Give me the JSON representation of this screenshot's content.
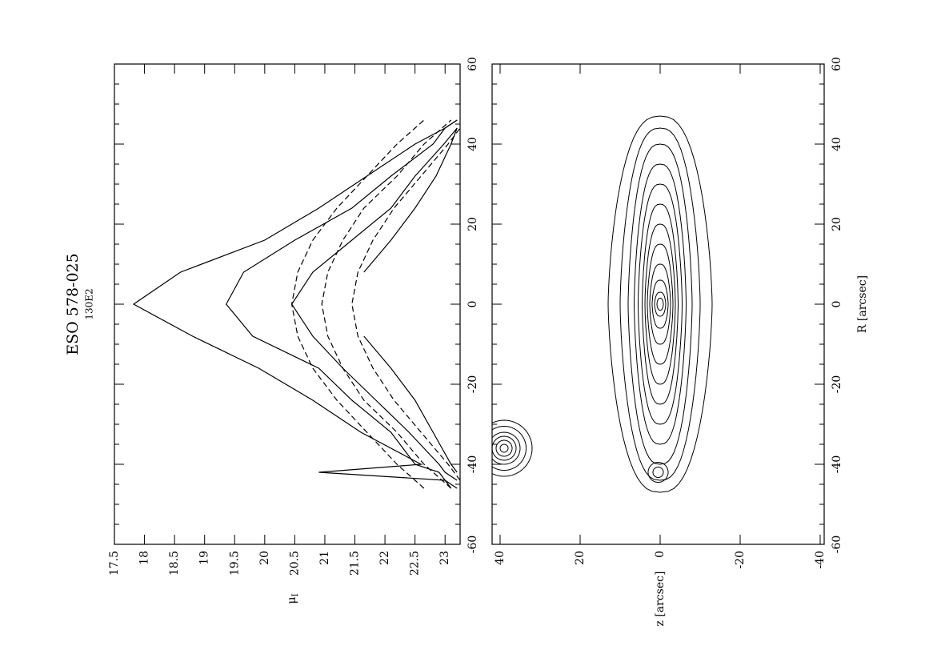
{
  "chart_data": [
    {
      "type": "line",
      "title": "ESO 578-025",
      "subtitle": "130E2",
      "ylabel": "μ",
      "ylabel_sub": "I",
      "x": [
        -46,
        -44,
        -42,
        -40,
        -32,
        -24,
        -16,
        -8,
        0,
        8,
        16,
        24,
        32,
        40,
        44,
        46
      ],
      "xlim": [
        -60,
        60
      ],
      "xticks": [
        -60,
        -40,
        -20,
        0,
        20,
        40,
        60
      ],
      "ylim": [
        17.5,
        23.25
      ],
      "yticks": [
        17.5,
        18,
        18.5,
        19,
        19.5,
        20,
        20.5,
        21,
        21.5,
        22,
        22.5,
        23
      ],
      "series": [
        {
          "color": "#000",
          "style": "solid",
          "values": [
            23.1,
            23.0,
            20.9,
            22.6,
            21.6,
            20.8,
            19.9,
            18.8,
            17.82,
            18.6,
            20.0,
            20.9,
            21.7,
            22.5,
            23.0,
            23.2
          ]
        },
        {
          "color": "#000",
          "style": "solid",
          "values": [
            23.2,
            23.0,
            22.9,
            22.5,
            22.1,
            21.45,
            20.9,
            19.8,
            19.36,
            19.65,
            20.5,
            21.45,
            22.1,
            22.8,
            23.0,
            23.2
          ]
        },
        {
          "color": "#000",
          "style": "solid",
          "values": [
            null,
            23.2,
            23.0,
            22.9,
            22.4,
            21.85,
            21.3,
            20.8,
            20.45,
            20.8,
            21.45,
            22.1,
            22.5,
            22.98,
            23.2,
            null
          ]
        },
        {
          "color": "#000",
          "style": "solid",
          "values": [
            null,
            null,
            23.2,
            23.1,
            22.8,
            22.5,
            22.1,
            21.65,
            null,
            21.65,
            22.1,
            22.5,
            22.85,
            23.1,
            23.2,
            null
          ]
        },
        {
          "color": "#000",
          "style": "dashed",
          "values": [
            22.65,
            22.5,
            22.35,
            22.2,
            21.7,
            21.2,
            20.8,
            20.55,
            20.45,
            20.55,
            20.8,
            21.2,
            21.7,
            22.2,
            22.5,
            22.65
          ]
        },
        {
          "color": "#000",
          "style": "dashed",
          "values": [
            23.1,
            22.95,
            22.8,
            22.65,
            22.2,
            21.65,
            21.3,
            21.05,
            20.95,
            21.05,
            21.3,
            21.65,
            22.2,
            22.65,
            22.95,
            23.1
          ]
        },
        {
          "color": "#000",
          "style": "dashed",
          "values": [
            null,
            23.25,
            23.15,
            23.05,
            22.6,
            22.15,
            21.8,
            21.55,
            21.45,
            21.55,
            21.8,
            22.15,
            22.6,
            23.05,
            23.25,
            null
          ]
        }
      ]
    },
    {
      "type": "contour",
      "xlabel": "R [arcsec]",
      "ylabel": "z [arcsec]",
      "xlim": [
        -60,
        60
      ],
      "xticks": [
        -60,
        -40,
        -20,
        0,
        20,
        40,
        60
      ],
      "ylim": [
        42,
        -41
      ],
      "yticks": [
        40,
        20,
        0,
        -20,
        -40
      ],
      "sources": [
        {
          "x": 0,
          "y": 0,
          "shape": "lens",
          "levels": [
            [
              47,
              13
            ],
            [
              44,
              10
            ],
            [
              40,
              8
            ],
            [
              35,
              6.5
            ],
            [
              30,
              5.5
            ],
            [
              25,
              4.5
            ],
            [
              20,
              3.8
            ],
            [
              15,
              3.2
            ],
            [
              10,
              2.6
            ],
            [
              6,
              2
            ],
            [
              3,
              1.4
            ],
            [
              1.5,
              0.8
            ]
          ]
        },
        {
          "x": -36,
          "y": 39,
          "shape": "ellipse",
          "levels": [
            [
              7,
              7
            ],
            [
              5.5,
              5.5
            ],
            [
              4,
              4
            ],
            [
              3,
              3
            ],
            [
              2,
              2
            ],
            [
              1,
              1
            ]
          ]
        },
        {
          "x": -42,
          "y": 0.5,
          "shape": "ellipse",
          "levels": [
            [
              2.5,
              2.5
            ],
            [
              1.3,
              1.3
            ]
          ]
        }
      ]
    }
  ]
}
